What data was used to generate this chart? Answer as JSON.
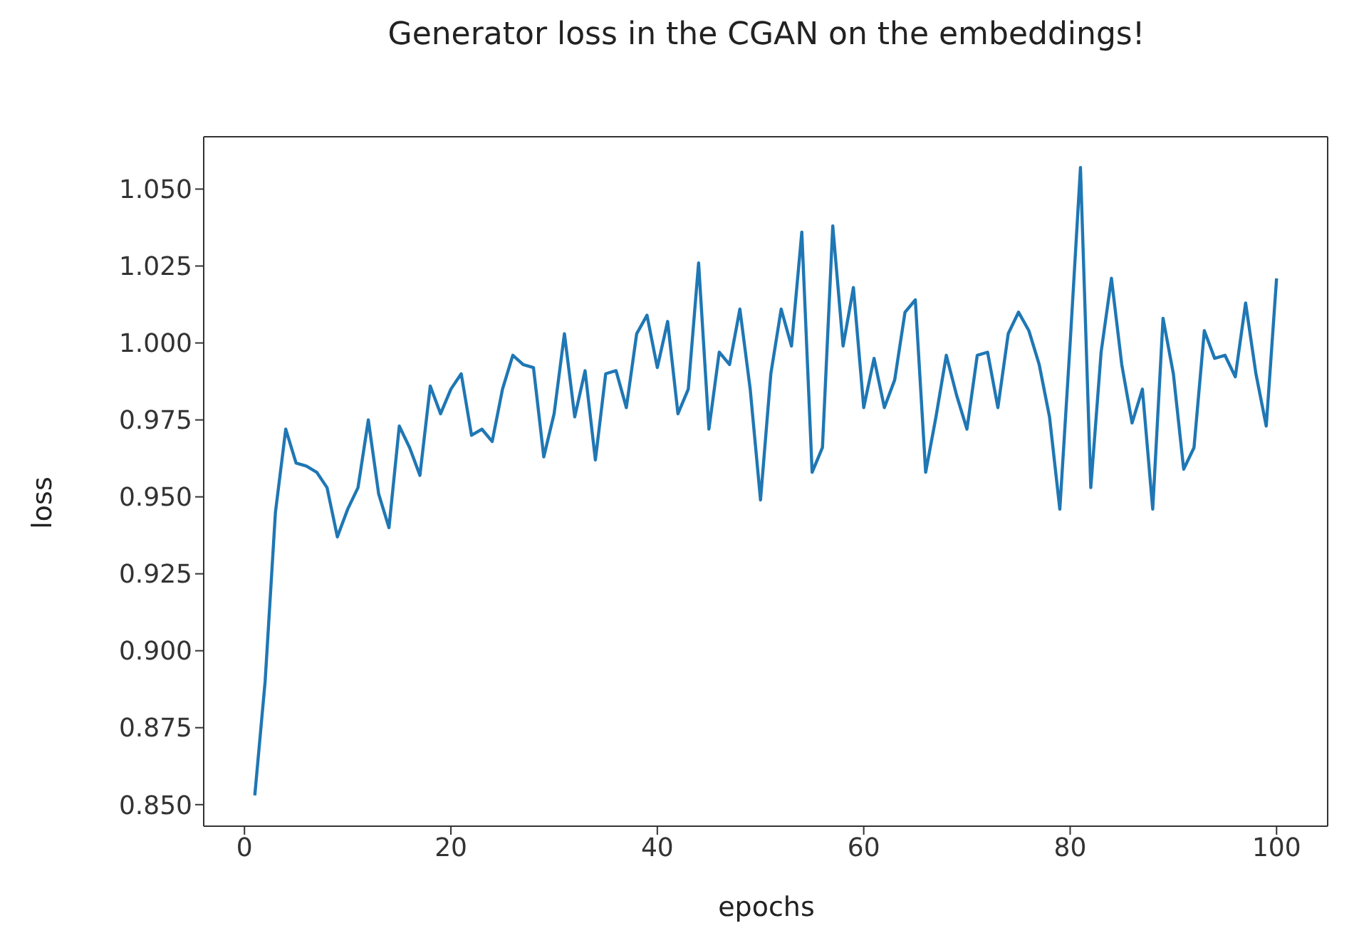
{
  "chart_data": {
    "type": "line",
    "title": "Generator loss in the CGAN on the embeddings!",
    "xlabel": "epochs",
    "ylabel": "loss",
    "x": [
      1,
      2,
      3,
      4,
      5,
      6,
      7,
      8,
      9,
      10,
      11,
      12,
      13,
      14,
      15,
      16,
      17,
      18,
      19,
      20,
      21,
      22,
      23,
      24,
      25,
      26,
      27,
      28,
      29,
      30,
      31,
      32,
      33,
      34,
      35,
      36,
      37,
      38,
      39,
      40,
      41,
      42,
      43,
      44,
      45,
      46,
      47,
      48,
      49,
      50,
      51,
      52,
      53,
      54,
      55,
      56,
      57,
      58,
      59,
      60,
      61,
      62,
      63,
      64,
      65,
      66,
      67,
      68,
      69,
      70,
      71,
      72,
      73,
      74,
      75,
      76,
      77,
      78,
      79,
      80,
      81,
      82,
      83,
      84,
      85,
      86,
      87,
      88,
      89,
      90,
      91,
      92,
      93,
      94,
      95,
      96,
      97,
      98,
      99,
      100
    ],
    "series": [
      {
        "color": "#1f77b4",
        "values": [
          0.853,
          0.89,
          0.945,
          0.972,
          0.961,
          0.96,
          0.958,
          0.953,
          0.937,
          0.946,
          0.953,
          0.975,
          0.951,
          0.94,
          0.973,
          0.966,
          0.957,
          0.986,
          0.977,
          0.985,
          0.99,
          0.97,
          0.972,
          0.968,
          0.985,
          0.996,
          0.993,
          0.992,
          0.963,
          0.977,
          1.003,
          0.976,
          0.991,
          0.962,
          0.99,
          0.991,
          0.979,
          1.003,
          1.009,
          0.992,
          1.007,
          0.977,
          0.985,
          1.026,
          0.972,
          0.997,
          0.993,
          1.011,
          0.985,
          0.949,
          0.99,
          1.011,
          0.999,
          1.036,
          0.958,
          0.966,
          1.038,
          0.999,
          1.018,
          0.979,
          0.995,
          0.979,
          0.988,
          1.01,
          1.014,
          0.958,
          0.976,
          0.996,
          0.983,
          0.972,
          0.996,
          0.997,
          0.979,
          1.003,
          1.01,
          1.004,
          0.993,
          0.976,
          0.946,
          1.0,
          1.057,
          0.953,
          0.997,
          1.021,
          0.993,
          0.974,
          0.985,
          0.946,
          1.008,
          0.99,
          0.959,
          0.966,
          1.004,
          0.995,
          0.996,
          0.989,
          1.013,
          0.99,
          0.973,
          1.021
        ]
      }
    ],
    "xlim": [
      -3.95,
      104.95
    ],
    "xticks": [
      0,
      20,
      40,
      60,
      80,
      100
    ],
    "ylim": [
      0.843,
      1.067
    ],
    "yticks": [
      {
        "value": 0.85,
        "label": "0.850"
      },
      {
        "value": 0.875,
        "label": "0.875"
      },
      {
        "value": 0.9,
        "label": "0.900"
      },
      {
        "value": 0.925,
        "label": "0.925"
      },
      {
        "value": 0.95,
        "label": "0.950"
      },
      {
        "value": 0.975,
        "label": "0.975"
      },
      {
        "value": 1.0,
        "label": "1.000"
      },
      {
        "value": 1.025,
        "label": "1.025"
      },
      {
        "value": 1.05,
        "label": "1.050"
      }
    ],
    "grid": false,
    "legend": false,
    "marker": "none",
    "line_style": "solid"
  }
}
